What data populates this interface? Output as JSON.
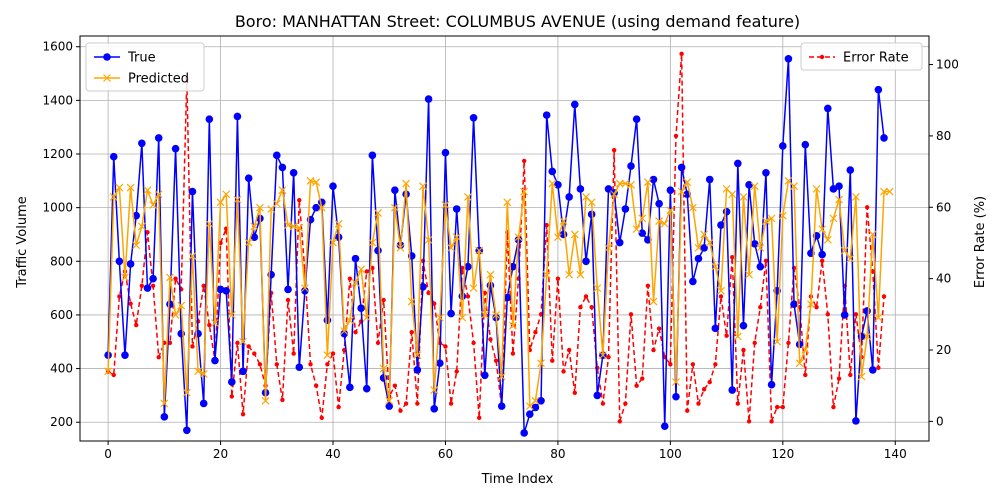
{
  "chart_data": {
    "type": "line",
    "title": "Boro: MANHATTAN Street: COLUMBUS AVENUE (using demand feature)",
    "xlabel": "Time Index",
    "ylabel_left": "Traffic Volume",
    "ylabel_right": "Error Rate (%)",
    "xlim": [
      -5,
      146
    ],
    "ylim_left": [
      130,
      1640
    ],
    "ylim_right": [
      -5.5,
      108
    ],
    "x_ticks": [
      0,
      20,
      40,
      60,
      80,
      100,
      120,
      140
    ],
    "y_ticks_left": [
      200,
      400,
      600,
      800,
      1000,
      1200,
      1400,
      1600
    ],
    "y_ticks_right": [
      0,
      20,
      40,
      60,
      80,
      100
    ],
    "grid": true,
    "legend_left_position": "upper-left",
    "legend_right_position": "upper-right",
    "series": [
      {
        "name": "True",
        "axis": "left",
        "color": "#0000ff",
        "marker": "circle",
        "linestyle": "solid",
        "values": [
          450,
          1190,
          800,
          450,
          790,
          970,
          1240,
          700,
          735,
          1260,
          220,
          640,
          1220,
          530,
          170,
          1060,
          530,
          270,
          1330,
          430,
          695,
          690,
          350,
          1340,
          390,
          1110,
          890,
          960,
          310,
          750,
          1195,
          1150,
          695,
          1130,
          405,
          690,
          955,
          1000,
          1020,
          580,
          1080,
          890,
          530,
          330,
          810,
          625,
          325,
          1195,
          840,
          365,
          260,
          1065,
          860,
          1050,
          820,
          395,
          705,
          1405,
          250,
          420,
          1205,
          605,
          995,
          670,
          780,
          1335,
          840,
          375,
          710,
          590,
          260,
          665,
          780,
          880,
          160,
          230,
          255,
          280,
          1345,
          1135,
          1085,
          900,
          1040,
          1385,
          1070,
          800,
          975,
          300,
          450,
          1070,
          1055,
          870,
          995,
          1155,
          1330,
          905,
          880,
          1105,
          1015,
          185,
          1065,
          295,
          1150,
          1050,
          725,
          810,
          850,
          1105,
          550,
          935,
          985,
          320,
          1165,
          560,
          1085,
          865,
          780,
          1130,
          340,
          690,
          1230,
          1555,
          640,
          490,
          1235,
          830,
          895,
          825,
          1370,
          1070,
          1080,
          600,
          1140,
          205,
          520,
          615,
          395,
          1440,
          1260
        ]
      },
      {
        "name": "Predicted",
        "axis": "left",
        "color": "#ffa500",
        "marker": "x",
        "linestyle": "solid",
        "values": [
          390,
          1040,
          1075,
          740,
          1075,
          860,
          930,
          1065,
          1010,
          1050,
          270,
          740,
          600,
          635,
          310,
          820,
          390,
          380,
          940,
          570,
          1020,
          1050,
          600,
          1030,
          500,
          870,
          930,
          1000,
          280,
          995,
          1015,
          1065,
          935,
          930,
          925,
          700,
          1100,
          1095,
          1000,
          450,
          870,
          940,
          540,
          580,
          720,
          770,
          590,
          870,
          980,
          400,
          280,
          1000,
          850,
          1090,
          650,
          450,
          1080,
          880,
          320,
          590,
          1010,
          850,
          890,
          590,
          1040,
          700,
          840,
          600,
          750,
          600,
          370,
          1020,
          560,
          890,
          1060,
          260,
          280,
          420,
          750,
          1090,
          890,
          950,
          750,
          900,
          750,
          1040,
          1020,
          700,
          450,
          850,
          1050,
          1090,
          1090,
          1085,
          920,
          960,
          1095,
          650,
          950,
          940,
          990,
          350,
          1060,
          1095,
          1000,
          850,
          900,
          870,
          780,
          690,
          1070,
          1050,
          520,
          1040,
          750,
          1080,
          850,
          950,
          960,
          500,
          970,
          1100,
          1080,
          420,
          470,
          640,
          1070,
          920,
          880,
          960,
          1030,
          840,
          810,
          1040,
          370,
          520,
          900,
          590,
          1060,
          1060
        ]
      },
      {
        "name": "Error Rate",
        "axis": "right",
        "color": "#ff0000",
        "marker": "dot",
        "linestyle": "dashed",
        "values": [
          14,
          13,
          35,
          42,
          33,
          27,
          38,
          53,
          38,
          18,
          22,
          22,
          40,
          37,
          96,
          21,
          28,
          38,
          27,
          17,
          50,
          54,
          7,
          22,
          2,
          21,
          19,
          16,
          10,
          36,
          16,
          6,
          34,
          19,
          62,
          42,
          16,
          10,
          1,
          16,
          19,
          4,
          20,
          40,
          25,
          28,
          42,
          43,
          22,
          34,
          7,
          10,
          3,
          5,
          25,
          5,
          45,
          36,
          33,
          22,
          21,
          5,
          14,
          43,
          35,
          22,
          1,
          36,
          23,
          17,
          4,
          53,
          19,
          40,
          73,
          20,
          25,
          30,
          55,
          17,
          40,
          14,
          20,
          8,
          32,
          35,
          32,
          15,
          5,
          18,
          76,
          0,
          5,
          30,
          10,
          12,
          38,
          20,
          26,
          18,
          16,
          80,
          103,
          3,
          16,
          5,
          9,
          11,
          16,
          35,
          24,
          46,
          5,
          20,
          0,
          22,
          32,
          45,
          0,
          4,
          4,
          22,
          43,
          32,
          13,
          35,
          32,
          45,
          30,
          4,
          12,
          38,
          13,
          30,
          18,
          60,
          42,
          15,
          35
        ]
      }
    ]
  }
}
